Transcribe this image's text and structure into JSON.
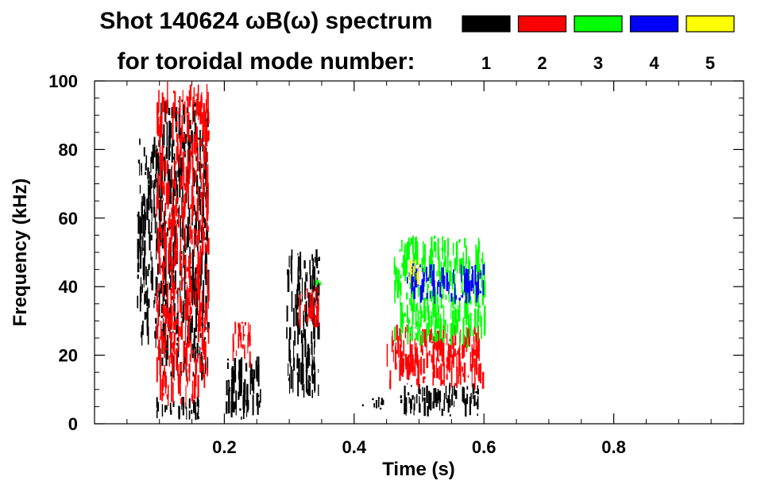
{
  "chart_data": {
    "type": "heatmap",
    "title_line1": "Shot 140624 ωB(ω) spectrum",
    "title_line2": "for toroidal mode number:",
    "xlabel": "Time (s)",
    "ylabel": "Frequency (kHz)",
    "xlim": [
      0.0,
      1.0
    ],
    "ylim": [
      0,
      100
    ],
    "x_ticks": [
      {
        "value": 0.2,
        "label": "0.2"
      },
      {
        "value": 0.4,
        "label": "0.4"
      },
      {
        "value": 0.6,
        "label": "0.6"
      },
      {
        "value": 0.8,
        "label": "0.8"
      }
    ],
    "y_ticks": [
      {
        "value": 0,
        "label": "0"
      },
      {
        "value": 20,
        "label": "20"
      },
      {
        "value": 40,
        "label": "40"
      },
      {
        "value": 60,
        "label": "60"
      },
      {
        "value": 80,
        "label": "80"
      },
      {
        "value": 100,
        "label": "100"
      }
    ],
    "legend_placement": "top-right",
    "legend": [
      {
        "mode": 1,
        "label": "1",
        "color": "#000000"
      },
      {
        "mode": 2,
        "label": "2",
        "color": "#ff0000"
      },
      {
        "mode": 3,
        "label": "3",
        "color": "#00ff00"
      },
      {
        "mode": 4,
        "label": "4",
        "color": "#0000ff"
      },
      {
        "mode": 5,
        "label": "5",
        "color": "#ffff00"
      }
    ],
    "regions": [
      {
        "mode": 1,
        "t": [
          0.065,
          0.1
        ],
        "f": [
          22,
          84
        ]
      },
      {
        "mode": 1,
        "t": [
          0.1,
          0.175
        ],
        "f": [
          12,
          95
        ]
      },
      {
        "mode": 1,
        "t": [
          0.095,
          0.16
        ],
        "f": [
          1,
          8
        ]
      },
      {
        "mode": 1,
        "t": [
          0.2,
          0.255
        ],
        "f": [
          1,
          20
        ]
      },
      {
        "mode": 1,
        "t": [
          0.295,
          0.345
        ],
        "f": [
          7,
          51
        ]
      },
      {
        "mode": 1,
        "t": [
          0.41,
          0.45
        ],
        "f": [
          4,
          8
        ]
      },
      {
        "mode": 1,
        "t": [
          0.47,
          0.595
        ],
        "f": [
          2,
          12
        ]
      },
      {
        "mode": 2,
        "t": [
          0.095,
          0.175
        ],
        "f": [
          5,
          100
        ]
      },
      {
        "mode": 2,
        "t": [
          0.21,
          0.24
        ],
        "f": [
          16,
          30
        ]
      },
      {
        "mode": 2,
        "t": [
          0.31,
          0.345
        ],
        "f": [
          28,
          40
        ]
      },
      {
        "mode": 2,
        "t": [
          0.45,
          0.6
        ],
        "f": [
          10,
          29
        ]
      },
      {
        "mode": 3,
        "t": [
          0.46,
          0.6
        ],
        "f": [
          22,
          55
        ]
      },
      {
        "mode": 3,
        "t": [
          0.34,
          0.36
        ],
        "f": [
          40,
          42
        ]
      },
      {
        "mode": 4,
        "t": [
          0.48,
          0.6
        ],
        "f": [
          35,
          47
        ]
      },
      {
        "mode": 5,
        "t": [
          0.475,
          0.5
        ],
        "f": [
          40,
          48
        ]
      }
    ]
  }
}
